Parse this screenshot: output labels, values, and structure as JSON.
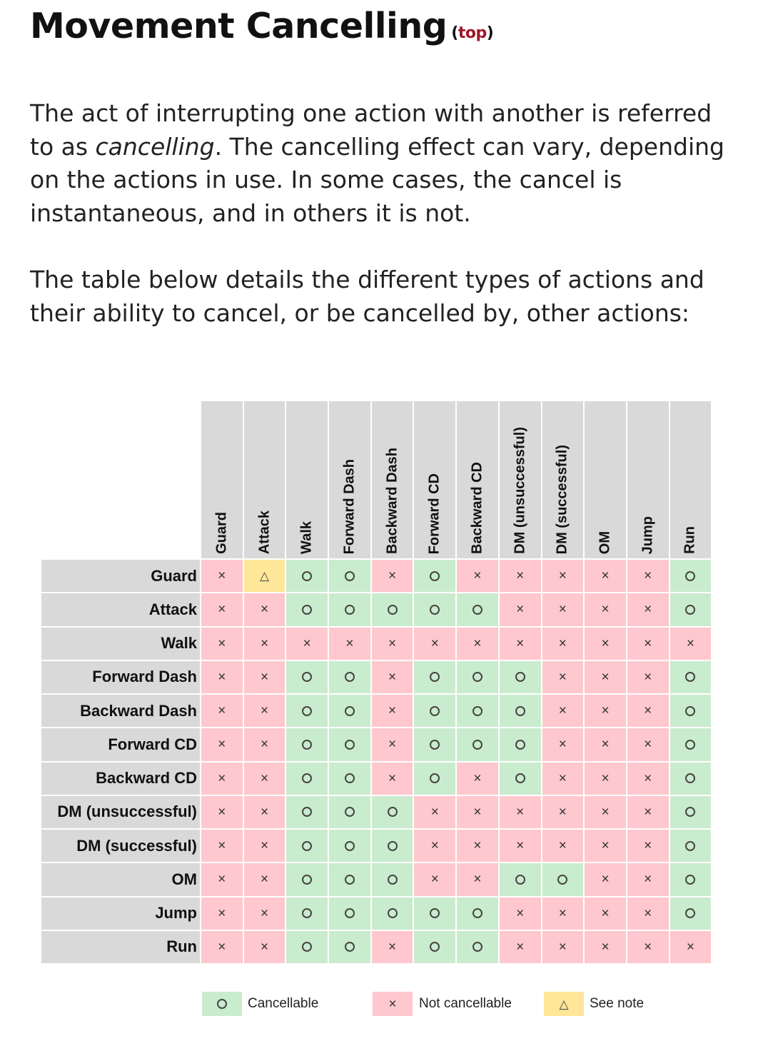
{
  "heading": {
    "title": "Movement Cancelling",
    "top_open": "(",
    "top_link": "top",
    "top_close": ")"
  },
  "paragraph1": {
    "before": "The act of interrupting one action with another is referred to as ",
    "emphasis": "cancelling",
    "after": ". The cancelling effect can vary, depending on the actions in use. In some cases, the cancel is instantaneous, and in others it is not."
  },
  "paragraph2": "The table below details the different types of actions and their ability to cancel, or be cancelled by, other actions:",
  "symbols": {
    "O": "circle-icon",
    "X": "cross-icon",
    "T": "triangle-warning-icon"
  },
  "colors": {
    "cancellable": "#c9ecce",
    "not_cancellable": "#ffc7ce",
    "see_note": "#ffe699",
    "header_bg": "#d9d9d9",
    "top_link": "#a0162b"
  },
  "table": {
    "columns": [
      "Guard",
      "Attack",
      "Walk",
      "Forward Dash",
      "Backward Dash",
      "Forward CD",
      "Backward CD",
      "DM (unsuccessful)",
      "DM (successful)",
      "OM",
      "Jump",
      "Run"
    ],
    "rows": [
      {
        "label": "Guard",
        "cells": [
          "X",
          "T",
          "O",
          "O",
          "X",
          "O",
          "X",
          "X",
          "X",
          "X",
          "X",
          "O"
        ]
      },
      {
        "label": "Attack",
        "cells": [
          "X",
          "X",
          "O",
          "O",
          "O",
          "O",
          "O",
          "X",
          "X",
          "X",
          "X",
          "O"
        ]
      },
      {
        "label": "Walk",
        "cells": [
          "X",
          "X",
          "X",
          "X",
          "X",
          "X",
          "X",
          "X",
          "X",
          "X",
          "X",
          "X"
        ]
      },
      {
        "label": "Forward Dash",
        "cells": [
          "X",
          "X",
          "O",
          "O",
          "X",
          "O",
          "O",
          "O",
          "X",
          "X",
          "X",
          "O"
        ]
      },
      {
        "label": "Backward Dash",
        "cells": [
          "X",
          "X",
          "O",
          "O",
          "X",
          "O",
          "O",
          "O",
          "X",
          "X",
          "X",
          "O"
        ]
      },
      {
        "label": "Forward CD",
        "cells": [
          "X",
          "X",
          "O",
          "O",
          "X",
          "O",
          "O",
          "O",
          "X",
          "X",
          "X",
          "O"
        ]
      },
      {
        "label": "Backward CD",
        "cells": [
          "X",
          "X",
          "O",
          "O",
          "X",
          "O",
          "X",
          "O",
          "X",
          "X",
          "X",
          "O"
        ]
      },
      {
        "label": "DM (unsuccessful)",
        "cells": [
          "X",
          "X",
          "O",
          "O",
          "O",
          "X",
          "X",
          "X",
          "X",
          "X",
          "X",
          "O"
        ]
      },
      {
        "label": "DM (successful)",
        "cells": [
          "X",
          "X",
          "O",
          "O",
          "O",
          "X",
          "X",
          "X",
          "X",
          "X",
          "X",
          "O"
        ]
      },
      {
        "label": "OM",
        "cells": [
          "X",
          "X",
          "O",
          "O",
          "O",
          "X",
          "X",
          "O",
          "O",
          "X",
          "X",
          "O"
        ]
      },
      {
        "label": "Jump",
        "cells": [
          "X",
          "X",
          "O",
          "O",
          "O",
          "O",
          "O",
          "X",
          "X",
          "X",
          "X",
          "O"
        ]
      },
      {
        "label": "Run",
        "cells": [
          "X",
          "X",
          "O",
          "O",
          "X",
          "O",
          "O",
          "X",
          "X",
          "X",
          "X",
          "X"
        ]
      }
    ]
  },
  "legend": [
    {
      "type": "O",
      "label": "Cancellable"
    },
    {
      "type": "X",
      "label": "Not cancellable"
    },
    {
      "type": "T",
      "label": "See note"
    }
  ]
}
